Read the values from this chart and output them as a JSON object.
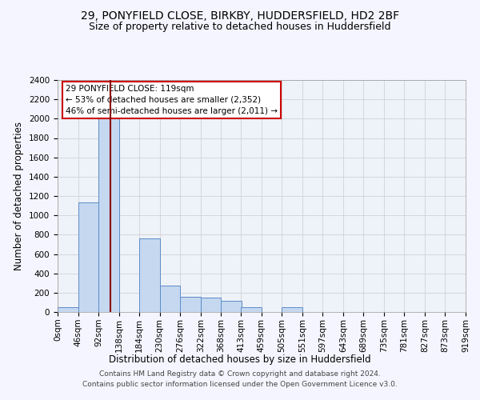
{
  "title_line1": "29, PONYFIELD CLOSE, BIRKBY, HUDDERSFIELD, HD2 2BF",
  "title_line2": "Size of property relative to detached houses in Huddersfield",
  "xlabel": "Distribution of detached houses by size in Huddersfield",
  "ylabel": "Number of detached properties",
  "footer_line1": "Contains HM Land Registry data © Crown copyright and database right 2024.",
  "footer_line2": "Contains public sector information licensed under the Open Government Licence v3.0.",
  "annotation_line1": "29 PONYFIELD CLOSE: 119sqm",
  "annotation_line2": "← 53% of detached houses are smaller (2,352)",
  "annotation_line3": "46% of semi-detached houses are larger (2,011) →",
  "property_size": 119,
  "bin_edges": [
    0,
    46,
    92,
    138,
    184,
    230,
    276,
    322,
    368,
    413,
    459,
    505,
    551,
    597,
    643,
    689,
    735,
    781,
    827,
    873,
    919
  ],
  "bar_heights": [
    50,
    1130,
    2050,
    0,
    760,
    270,
    160,
    145,
    120,
    50,
    0,
    50,
    0,
    0,
    0,
    0,
    0,
    0,
    0,
    0
  ],
  "bar_color": "#c5d8f0",
  "bar_edge_color": "#5b8cc8",
  "vline_color": "#8b0000",
  "vline_x": 119,
  "ylim": [
    0,
    2400
  ],
  "yticks": [
    0,
    200,
    400,
    600,
    800,
    1000,
    1200,
    1400,
    1600,
    1800,
    2000,
    2200,
    2400
  ],
  "grid_color": "#cccccc",
  "background_color": "#eef2f9",
  "fig_background_color": "#f5f5ff",
  "annotation_box_color": "#ffffff",
  "annotation_box_edge": "#cc0000",
  "title_fontsize": 10,
  "subtitle_fontsize": 9,
  "axis_label_fontsize": 8.5,
  "tick_fontsize": 7.5,
  "annotation_fontsize": 7.5,
  "footer_fontsize": 6.5
}
